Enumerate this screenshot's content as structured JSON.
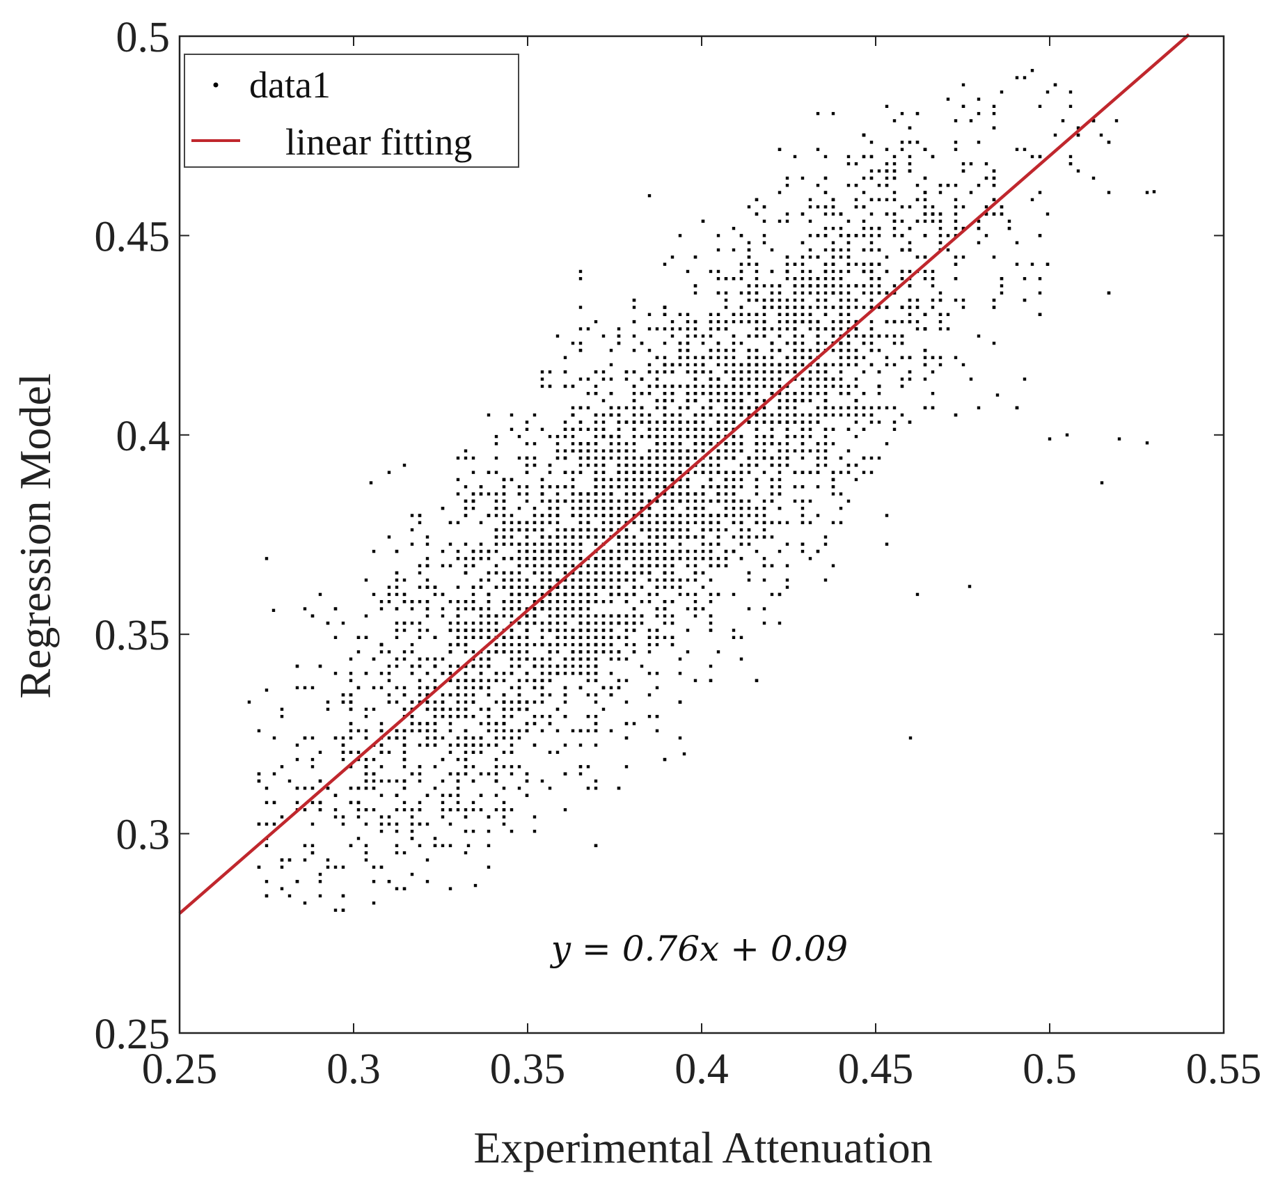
{
  "chart_data": {
    "type": "scatter",
    "xlabel": "Experimental Attenuation",
    "ylabel": "Regression Model",
    "xlim": [
      0.25,
      0.55
    ],
    "ylim": [
      0.25,
      0.5
    ],
    "xticks": [
      0.25,
      0.3,
      0.35,
      0.4,
      0.45,
      0.5,
      0.55
    ],
    "yticks": [
      0.25,
      0.3,
      0.35,
      0.4,
      0.45,
      0.5
    ],
    "xtick_labels": [
      "0.25",
      "0.3",
      "0.35",
      "0.4",
      "0.45",
      "0.5",
      "0.55"
    ],
    "ytick_labels": [
      "0.25",
      "0.3",
      "0.35",
      "0.4",
      "0.45",
      "0.5"
    ],
    "grid": false,
    "legend": {
      "position": "top-left",
      "entries": [
        "data1",
        "linear fitting"
      ]
    },
    "annotation": "y = 0.76x + 0.09",
    "series": [
      {
        "name": "data1",
        "kind": "scatter",
        "color": "#000000",
        "description_stats": {
          "x_range": [
            0.27,
            0.53
          ],
          "y_range": [
            0.28,
            0.495
          ],
          "center_trend": "y ≈ 0.76x + 0.09",
          "spread_sd": 0.022
        },
        "points": []
      },
      {
        "name": "linear fitting",
        "kind": "line",
        "color": "#c0272d",
        "slope": 0.76,
        "intercept": 0.09,
        "x_range": [
          0.25,
          0.54
        ]
      }
    ]
  }
}
